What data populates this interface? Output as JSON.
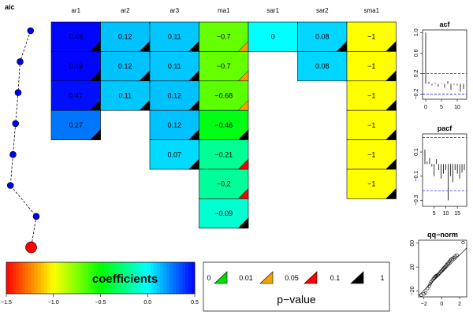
{
  "chart_data": [
    {
      "type": "heatmap",
      "columns": [
        "ar1",
        "ar2",
        "ar3",
        "ma1",
        "sar1",
        "sar2",
        "sma1"
      ],
      "rows": [
        [
          "0.49",
          "0.12",
          "0.11",
          "−0.7",
          "0",
          "0.08",
          "−1"
        ],
        [
          "0.49",
          "0.12",
          "0.11",
          "−0.7",
          "",
          "0.08",
          "−1"
        ],
        [
          "0.47",
          "0.11",
          "0.12",
          "−0.68",
          "",
          "",
          "−1"
        ],
        [
          "0.27",
          "",
          "0.12",
          "−0.46",
          "",
          "",
          "−1"
        ],
        [
          "",
          "",
          "0.07",
          "−0.21",
          "",
          "",
          "−1"
        ],
        [
          "",
          "",
          "",
          "−0.2",
          "",
          "",
          "−1"
        ],
        [
          "",
          "",
          "",
          "−0.09",
          "",
          "",
          ""
        ]
      ],
      "values": [
        [
          0.49,
          0.12,
          0.11,
          -0.7,
          0,
          0.08,
          -1
        ],
        [
          0.49,
          0.12,
          0.11,
          -0.7,
          null,
          0.08,
          -1
        ],
        [
          0.47,
          0.11,
          0.12,
          -0.68,
          null,
          null,
          -1
        ],
        [
          0.27,
          null,
          0.12,
          -0.46,
          null,
          null,
          -1
        ],
        [
          null,
          null,
          0.07,
          -0.21,
          null,
          null,
          -1
        ],
        [
          null,
          null,
          null,
          -0.2,
          null,
          null,
          -1
        ],
        [
          null,
          null,
          null,
          -0.09,
          null,
          null,
          null
        ]
      ],
      "pvalue_band": [
        [
          "0.1-1",
          "0.1-1",
          "0.1-1",
          "0.01-0.05",
          "",
          "0.1-1",
          "0.1-1"
        ],
        [
          "0.1-1",
          "0.1-1",
          "0.1-1",
          "0.01-0.05",
          "",
          "",
          "0.1-1"
        ],
        [
          "0.1-1",
          "0.1-1",
          "0.1-1",
          "0.01-0.05",
          "",
          "",
          "0.1-1"
        ],
        [
          "0.1-1",
          "",
          "0.1-1",
          "0.1-1",
          "",
          "",
          "0.1-1"
        ],
        [
          "",
          "",
          "0.1-1",
          "0.05-0.1",
          "",
          "",
          "0.1-1"
        ],
        [
          "",
          "",
          "",
          "0.05-0.1",
          "",
          "",
          "0.1-1"
        ],
        [
          "",
          "",
          "",
          "0.1-1",
          "",
          "",
          ""
        ]
      ]
    },
    {
      "type": "line",
      "title": "aic",
      "y_rank": [
        1,
        2,
        3,
        4,
        5,
        6,
        7,
        8
      ],
      "x_relative": [
        0.8,
        0.43,
        0.36,
        0.27,
        0.18,
        0.09,
        1.0,
        0.82
      ],
      "highlight_index": 7
    },
    {
      "type": "bar",
      "title": "acf",
      "xticks": [
        "0",
        "5",
        "10"
      ],
      "yticks": [
        "1.0",
        "0.6",
        "0.2",
        "−0.2"
      ],
      "ylim": [
        -0.3,
        1.05
      ],
      "values": [
        1.0,
        0.04,
        -0.03,
        0.02,
        -0.05,
        0.01,
        -0.08,
        0.05,
        -0.12,
        -0.02,
        -0.03,
        -0.15,
        -0.1
      ],
      "conf_limit": 0.2
    },
    {
      "type": "bar",
      "title": "pacf",
      "xticks": [
        "5",
        "10",
        "15"
      ],
      "yticks": [
        "0.1",
        "−0.1",
        "−0.3"
      ],
      "ylim": [
        -0.35,
        0.25
      ],
      "values": [
        0.12,
        0.02,
        0.05,
        -0.02,
        -0.1,
        0.04,
        -0.05,
        -0.12,
        -0.08,
        -0.05,
        -0.3,
        -0.1,
        -0.15,
        -0.05,
        -0.08,
        -0.12,
        -0.07,
        -0.05
      ],
      "conf_limit": 0.22
    },
    {
      "type": "scatter",
      "title": "qq−norm",
      "xticks": [
        "−2",
        "0",
        "2"
      ],
      "yticks": [
        "60",
        "20",
        "−20"
      ],
      "xlim": [
        -2.6,
        2.8
      ],
      "ylim": [
        -30,
        65
      ],
      "x": [
        -2.3,
        -2.0,
        -1.8,
        -1.6,
        -1.4,
        -1.3,
        -1.2,
        -1.05,
        -0.95,
        -0.85,
        -0.75,
        -0.65,
        -0.55,
        -0.45,
        -0.35,
        -0.25,
        -0.15,
        -0.05,
        0.05,
        0.15,
        0.25,
        0.35,
        0.45,
        0.55,
        0.65,
        0.75,
        0.85,
        0.95,
        1.05,
        1.2,
        1.35,
        1.5,
        1.7,
        2.4
      ],
      "y": [
        -27,
        -25,
        -23,
        -16,
        -12,
        -8,
        -5,
        -2,
        0,
        2,
        4,
        5,
        6,
        7,
        8,
        10,
        12,
        13,
        15,
        17,
        19,
        20,
        22,
        24,
        26,
        27,
        29,
        31,
        33,
        34,
        36,
        38,
        40,
        61
      ],
      "fit_line": [
        [
          -2.6,
          -28
        ],
        [
          2.8,
          52
        ]
      ]
    }
  ],
  "color_legend": {
    "label": "coefficients",
    "ticks": [
      "−1.5",
      "−1.0",
      "−0.5",
      "0.0",
      "0.5"
    ],
    "range": [
      -1.5,
      0.5
    ]
  },
  "pvalue_legend": {
    "title": "p−value",
    "breaks": [
      "0",
      "0.01",
      "0.05",
      "0.1",
      "1"
    ],
    "colors": [
      "#00dd00",
      "#f5a000",
      "#ff0000",
      "#000000"
    ]
  }
}
